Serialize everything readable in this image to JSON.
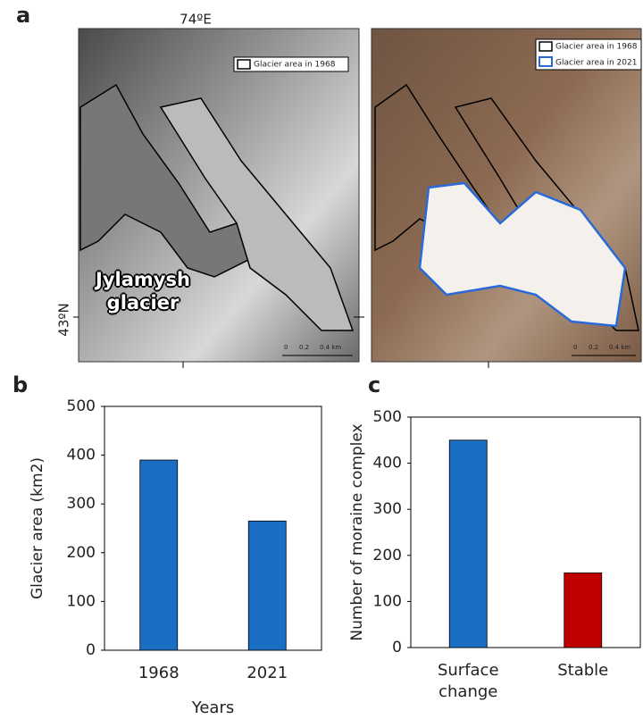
{
  "panel_labels": [
    "a",
    "b",
    "c"
  ],
  "maps": {
    "lon_label": "74ºE",
    "lat_label": "43ºN",
    "glacier_name": "Jylamysh glacier",
    "legend_1968": "Glacier area in 1968",
    "legend_2021": "Glacier area in 2021",
    "scale_labels": [
      "0",
      "0.2",
      "0.4 km"
    ]
  },
  "chart_data": [
    {
      "type": "bar",
      "categories": [
        "1968",
        "2021"
      ],
      "values": [
        390,
        265
      ],
      "colors": [
        "#1a6fc4",
        "#1a6fc4"
      ],
      "x_label": "Years",
      "y_label": "Glacier area (km2)",
      "ylim": [
        0,
        500
      ],
      "yticks": [
        0,
        100,
        200,
        300,
        400,
        500
      ]
    },
    {
      "type": "bar",
      "categories": [
        "Surface change",
        "Stable"
      ],
      "values": [
        450,
        162
      ],
      "colors": [
        "#1a6fc4",
        "#c00000"
      ],
      "y_label": "Number of moraine complex",
      "ylim": [
        0,
        500
      ],
      "yticks": [
        0,
        100,
        200,
        300,
        400,
        500
      ]
    }
  ]
}
